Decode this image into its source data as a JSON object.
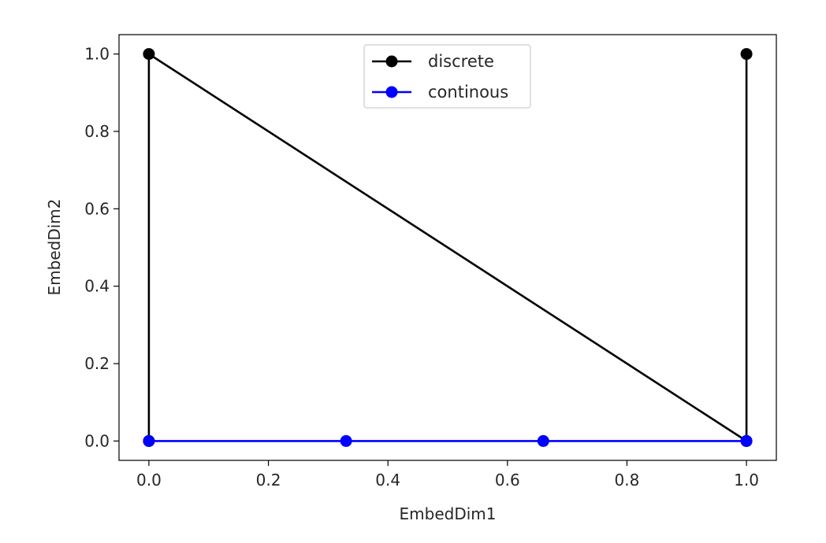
{
  "chart_data": {
    "type": "line",
    "title": "",
    "xlabel": "EmbedDim1",
    "ylabel": "EmbedDim2",
    "xlim": [
      -0.05,
      1.05
    ],
    "ylim": [
      -0.05,
      1.05
    ],
    "x_ticks": [
      0.0,
      0.2,
      0.4,
      0.6,
      0.8,
      1.0
    ],
    "y_ticks": [
      0.0,
      0.2,
      0.4,
      0.6,
      0.8,
      1.0
    ],
    "x_tick_labels": [
      "0.0",
      "0.2",
      "0.4",
      "0.6",
      "0.8",
      "1.0"
    ],
    "y_tick_labels": [
      "0.0",
      "0.2",
      "0.4",
      "0.6",
      "0.8",
      "1.0"
    ],
    "grid": false,
    "legend_position": "top-center",
    "series": [
      {
        "name": "discrete",
        "color": "#000000",
        "marker": "circle",
        "x": [
          0.0,
          0.0,
          1.0,
          1.0
        ],
        "y": [
          0.0,
          1.0,
          0.0,
          1.0
        ]
      },
      {
        "name": "continous",
        "color": "#0000ff",
        "marker": "circle",
        "x": [
          0.0,
          0.33,
          0.66,
          1.0
        ],
        "y": [
          0.0,
          0.0,
          0.0,
          0.0
        ]
      }
    ]
  }
}
